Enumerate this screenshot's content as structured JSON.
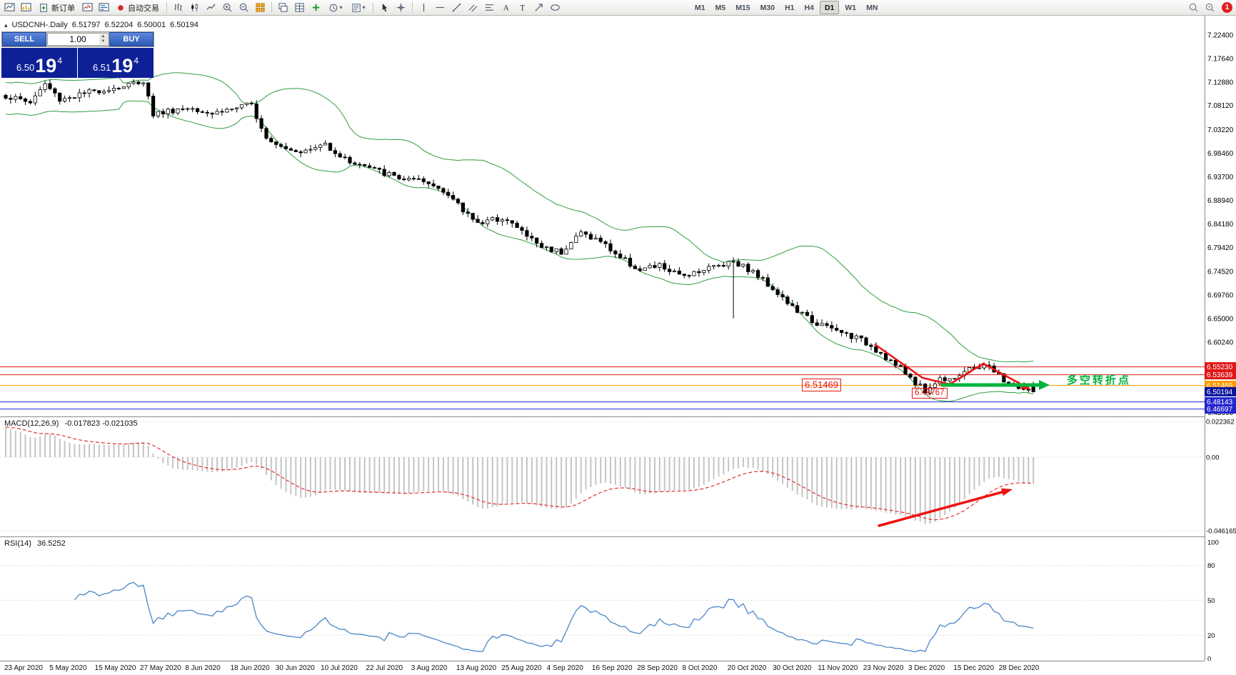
{
  "toolbar": {
    "new_order_label": "新订单",
    "autotrade_label": "自动交易",
    "timeframes": [
      "M1",
      "M5",
      "M15",
      "M30",
      "H1",
      "H4",
      "D1",
      "W1",
      "MN"
    ],
    "active_timeframe": "D1",
    "notification_count": "1"
  },
  "chart": {
    "symbol_period": "USDCNH-.Daily",
    "open": "6.51797",
    "high": "6.52204",
    "low": "6.50001",
    "close": "6.50194",
    "trade_panel": {
      "sell_label": "SELL",
      "buy_label": "BUY",
      "volume": "1.00",
      "sell_price_main": "6.50",
      "sell_price_pips": "19",
      "sell_price_sup": "4",
      "buy_price_main": "6.51",
      "buy_price_pips": "19",
      "buy_price_sup": "4"
    },
    "price_scale": {
      "labels": [
        "7.22400",
        "7.17640",
        "7.12880",
        "7.08120",
        "7.03220",
        "6.98460",
        "6.93700",
        "6.88940",
        "6.84180",
        "6.79420",
        "6.74520",
        "6.69760",
        "6.65000",
        "6.60240",
        "6.45960"
      ],
      "tags": [
        {
          "value": "6.55230",
          "color": "#e01616",
          "line": true
        },
        {
          "value": "6.53639",
          "color": "#e01616",
          "line": true
        },
        {
          "value": "6.51469",
          "color": "#ff9800",
          "line": true
        },
        {
          "value": "6.50194",
          "color": "#08149c",
          "line": false,
          "current": true
        },
        {
          "value": "6.48143",
          "color": "#2326cf",
          "line": true
        },
        {
          "value": "6.46697",
          "color": "#2326cf",
          "line": true
        }
      ]
    },
    "annotations": {
      "level_label_1": "6.51469",
      "level_label_2": "6.49767",
      "turning_point_text": "多空转折点"
    }
  },
  "macd": {
    "name": "MACD(12,26,9)",
    "values": "-0.017823 -0.021035",
    "scale": [
      "0.022362",
      "0.00",
      "-0.046165"
    ]
  },
  "rsi": {
    "name": "RSI(14)",
    "value": "36.5252",
    "scale": [
      "100",
      "80",
      "50",
      "20",
      "0"
    ]
  },
  "date_axis": [
    "23 Apr 2020",
    "5 May 2020",
    "15 May 2020",
    "27 May 2020",
    "8 Jun 2020",
    "18 Jun 2020",
    "30 Jun 2020",
    "10 Jul 2020",
    "22 Jul 2020",
    "3 Aug 2020",
    "13 Aug 2020",
    "25 Aug 2020",
    "4 Sep 2020",
    "16 Sep 2020",
    "28 Sep 2020",
    "8 Oct 2020",
    "20 Oct 2020",
    "30 Oct 2020",
    "11 Nov 2020",
    "23 Nov 2020",
    "3 Dec 2020",
    "15 Dec 2020",
    "28 Dec 2020"
  ],
  "colors": {
    "bollinger": "#2f9e3f",
    "bull": "#ffffff",
    "bear": "#000000",
    "annotation_red": "#ee1111",
    "annotation_green": "#00b43c",
    "macd_hist": "#c4c4c4",
    "macd_signal": "#e03131",
    "rsi_line": "#4a86c8"
  },
  "chart_data": {
    "type": "candlestick",
    "symbol": "USDCNH",
    "period": "Daily",
    "candle_count": 210,
    "candle_spacing": 6.886,
    "y_axis": {
      "min": 6.452,
      "max": 7.26
    },
    "price_anchors": [
      [
        0,
        7.1
      ],
      [
        5,
        7.088
      ],
      [
        8,
        7.125
      ],
      [
        11,
        7.094
      ],
      [
        15,
        7.103
      ],
      [
        19,
        7.112
      ],
      [
        24,
        7.12
      ],
      [
        28,
        7.132
      ],
      [
        30,
        7.064
      ],
      [
        34,
        7.072
      ],
      [
        38,
        7.078
      ],
      [
        42,
        7.066
      ],
      [
        46,
        7.075
      ],
      [
        50,
        7.082
      ],
      [
        53,
        7.018
      ],
      [
        57,
        6.996
      ],
      [
        61,
        6.988
      ],
      [
        65,
        7.004
      ],
      [
        69,
        6.972
      ],
      [
        73,
        6.958
      ],
      [
        77,
        6.944
      ],
      [
        81,
        6.932
      ],
      [
        85,
        6.925
      ],
      [
        89,
        6.912
      ],
      [
        93,
        6.868
      ],
      [
        97,
        6.842
      ],
      [
        101,
        6.856
      ],
      [
        105,
        6.826
      ],
      [
        109,
        6.795
      ],
      [
        113,
        6.786
      ],
      [
        117,
        6.824
      ],
      [
        121,
        6.806
      ],
      [
        125,
        6.774
      ],
      [
        129,
        6.748
      ],
      [
        133,
        6.757
      ],
      [
        137,
        6.736
      ],
      [
        141,
        6.748
      ],
      [
        145,
        6.758
      ],
      [
        148,
        6.768
      ],
      [
        152,
        6.744
      ],
      [
        156,
        6.712
      ],
      [
        160,
        6.672
      ],
      [
        164,
        6.645
      ],
      [
        168,
        6.628
      ],
      [
        172,
        6.615
      ],
      [
        176,
        6.596
      ],
      [
        179,
        6.572
      ],
      [
        182,
        6.548
      ],
      [
        185,
        6.522
      ],
      [
        187,
        6.503
      ],
      [
        190,
        6.528
      ],
      [
        193,
        6.533
      ],
      [
        196,
        6.545
      ],
      [
        199,
        6.558
      ],
      [
        201,
        6.542
      ],
      [
        203,
        6.525
      ],
      [
        205,
        6.515
      ],
      [
        207,
        6.507
      ],
      [
        209,
        6.502
      ]
    ],
    "last_candle": {
      "open": 6.51797,
      "high": 6.52204,
      "low": 6.50001,
      "close": 6.50194
    },
    "dip": {
      "index": 187,
      "low": 6.49767
    },
    "long_wick": {
      "index": 148,
      "drop": 0.115
    },
    "indicators": {
      "bollinger": {
        "period": 20,
        "deviation": 2
      },
      "macd": {
        "fast": 12,
        "slow": 26,
        "signal": 9
      },
      "rsi": {
        "period": 14
      }
    }
  }
}
